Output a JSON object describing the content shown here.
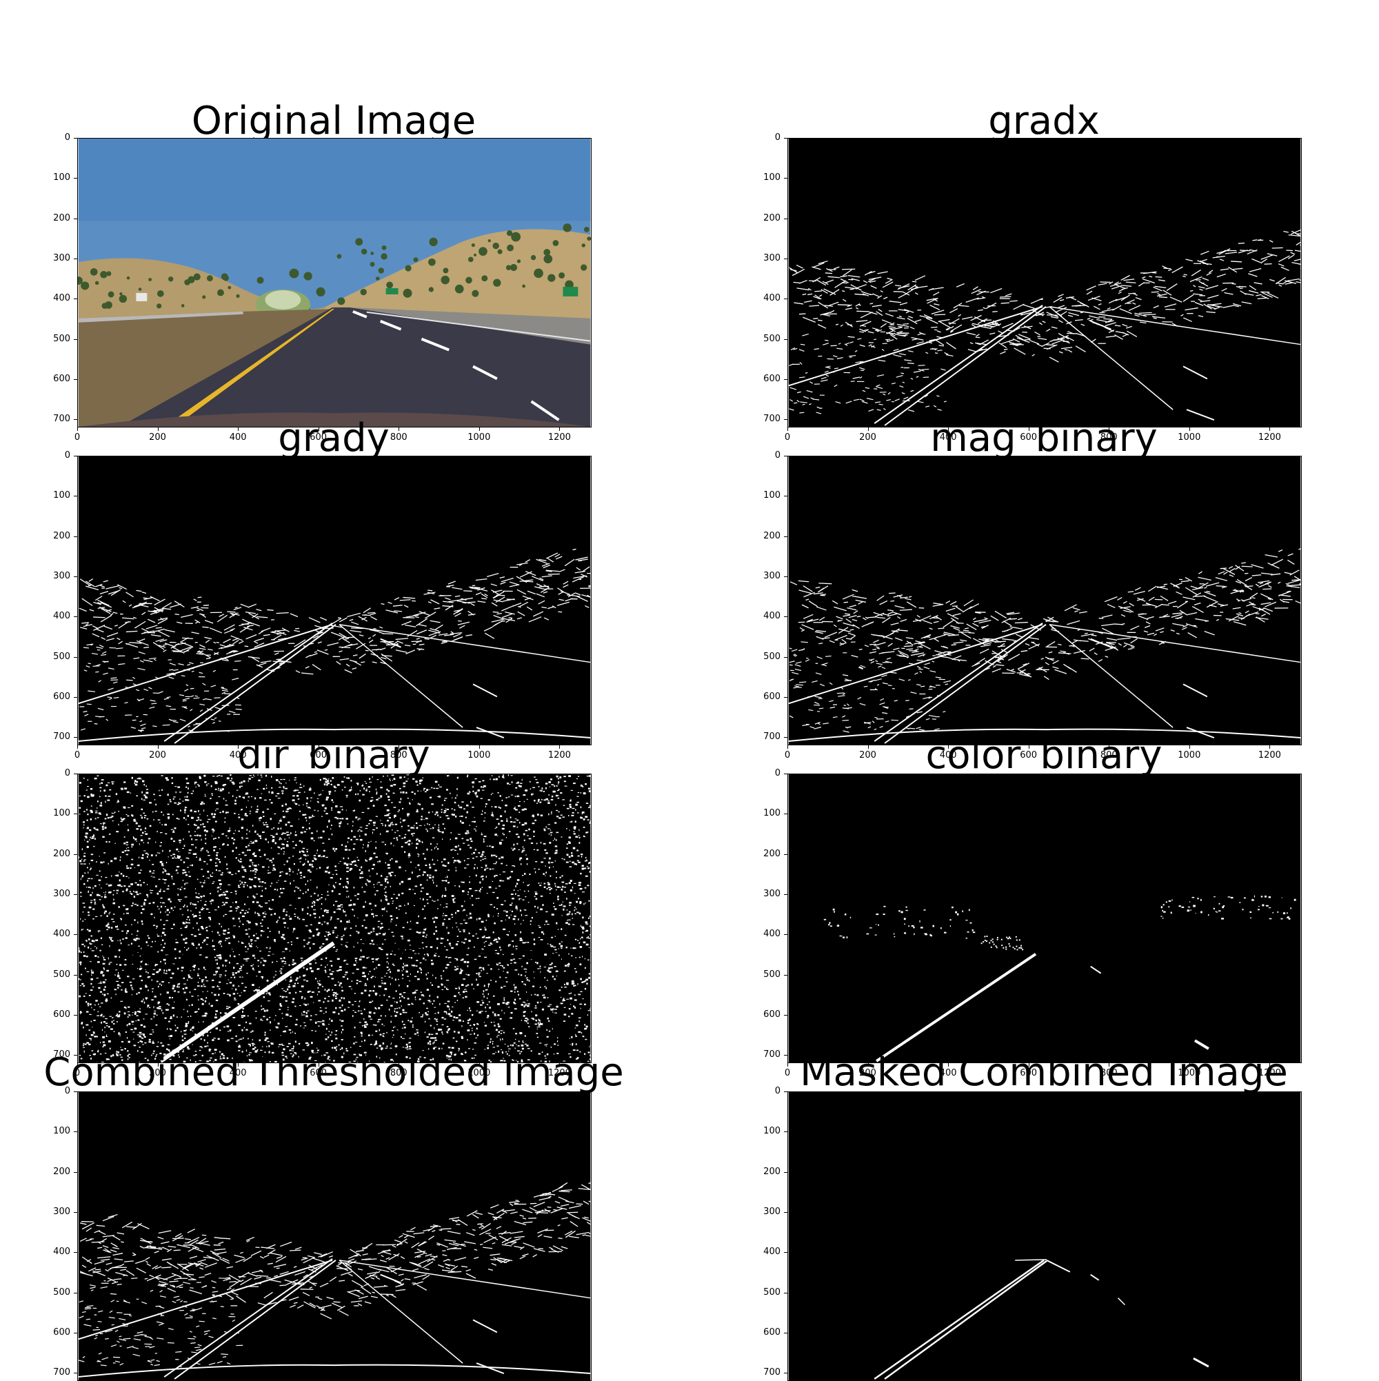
{
  "figure": {
    "panels": [
      {
        "id": "original",
        "title": "Original Image",
        "type": "photo"
      },
      {
        "id": "gradx",
        "title": "gradx",
        "type": "edges"
      },
      {
        "id": "grady",
        "title": "grady",
        "type": "edges"
      },
      {
        "id": "mag",
        "title": "mag_binary",
        "type": "edges"
      },
      {
        "id": "dir",
        "title": "dir_binary",
        "type": "noise"
      },
      {
        "id": "color",
        "title": "color_binary",
        "type": "sparse"
      },
      {
        "id": "combined",
        "title": "Combined Thresholded Image",
        "type": "edges"
      },
      {
        "id": "masked",
        "title": "Masked Combined Image",
        "type": "masked"
      }
    ],
    "y_ticks": [
      "0",
      "100",
      "200",
      "300",
      "400",
      "500",
      "600",
      "700"
    ],
    "x_ticks": [
      "0",
      "200",
      "400",
      "600",
      "800",
      "1000",
      "1200"
    ],
    "image_extent": {
      "x_max": 1280,
      "y_max": 720
    }
  }
}
